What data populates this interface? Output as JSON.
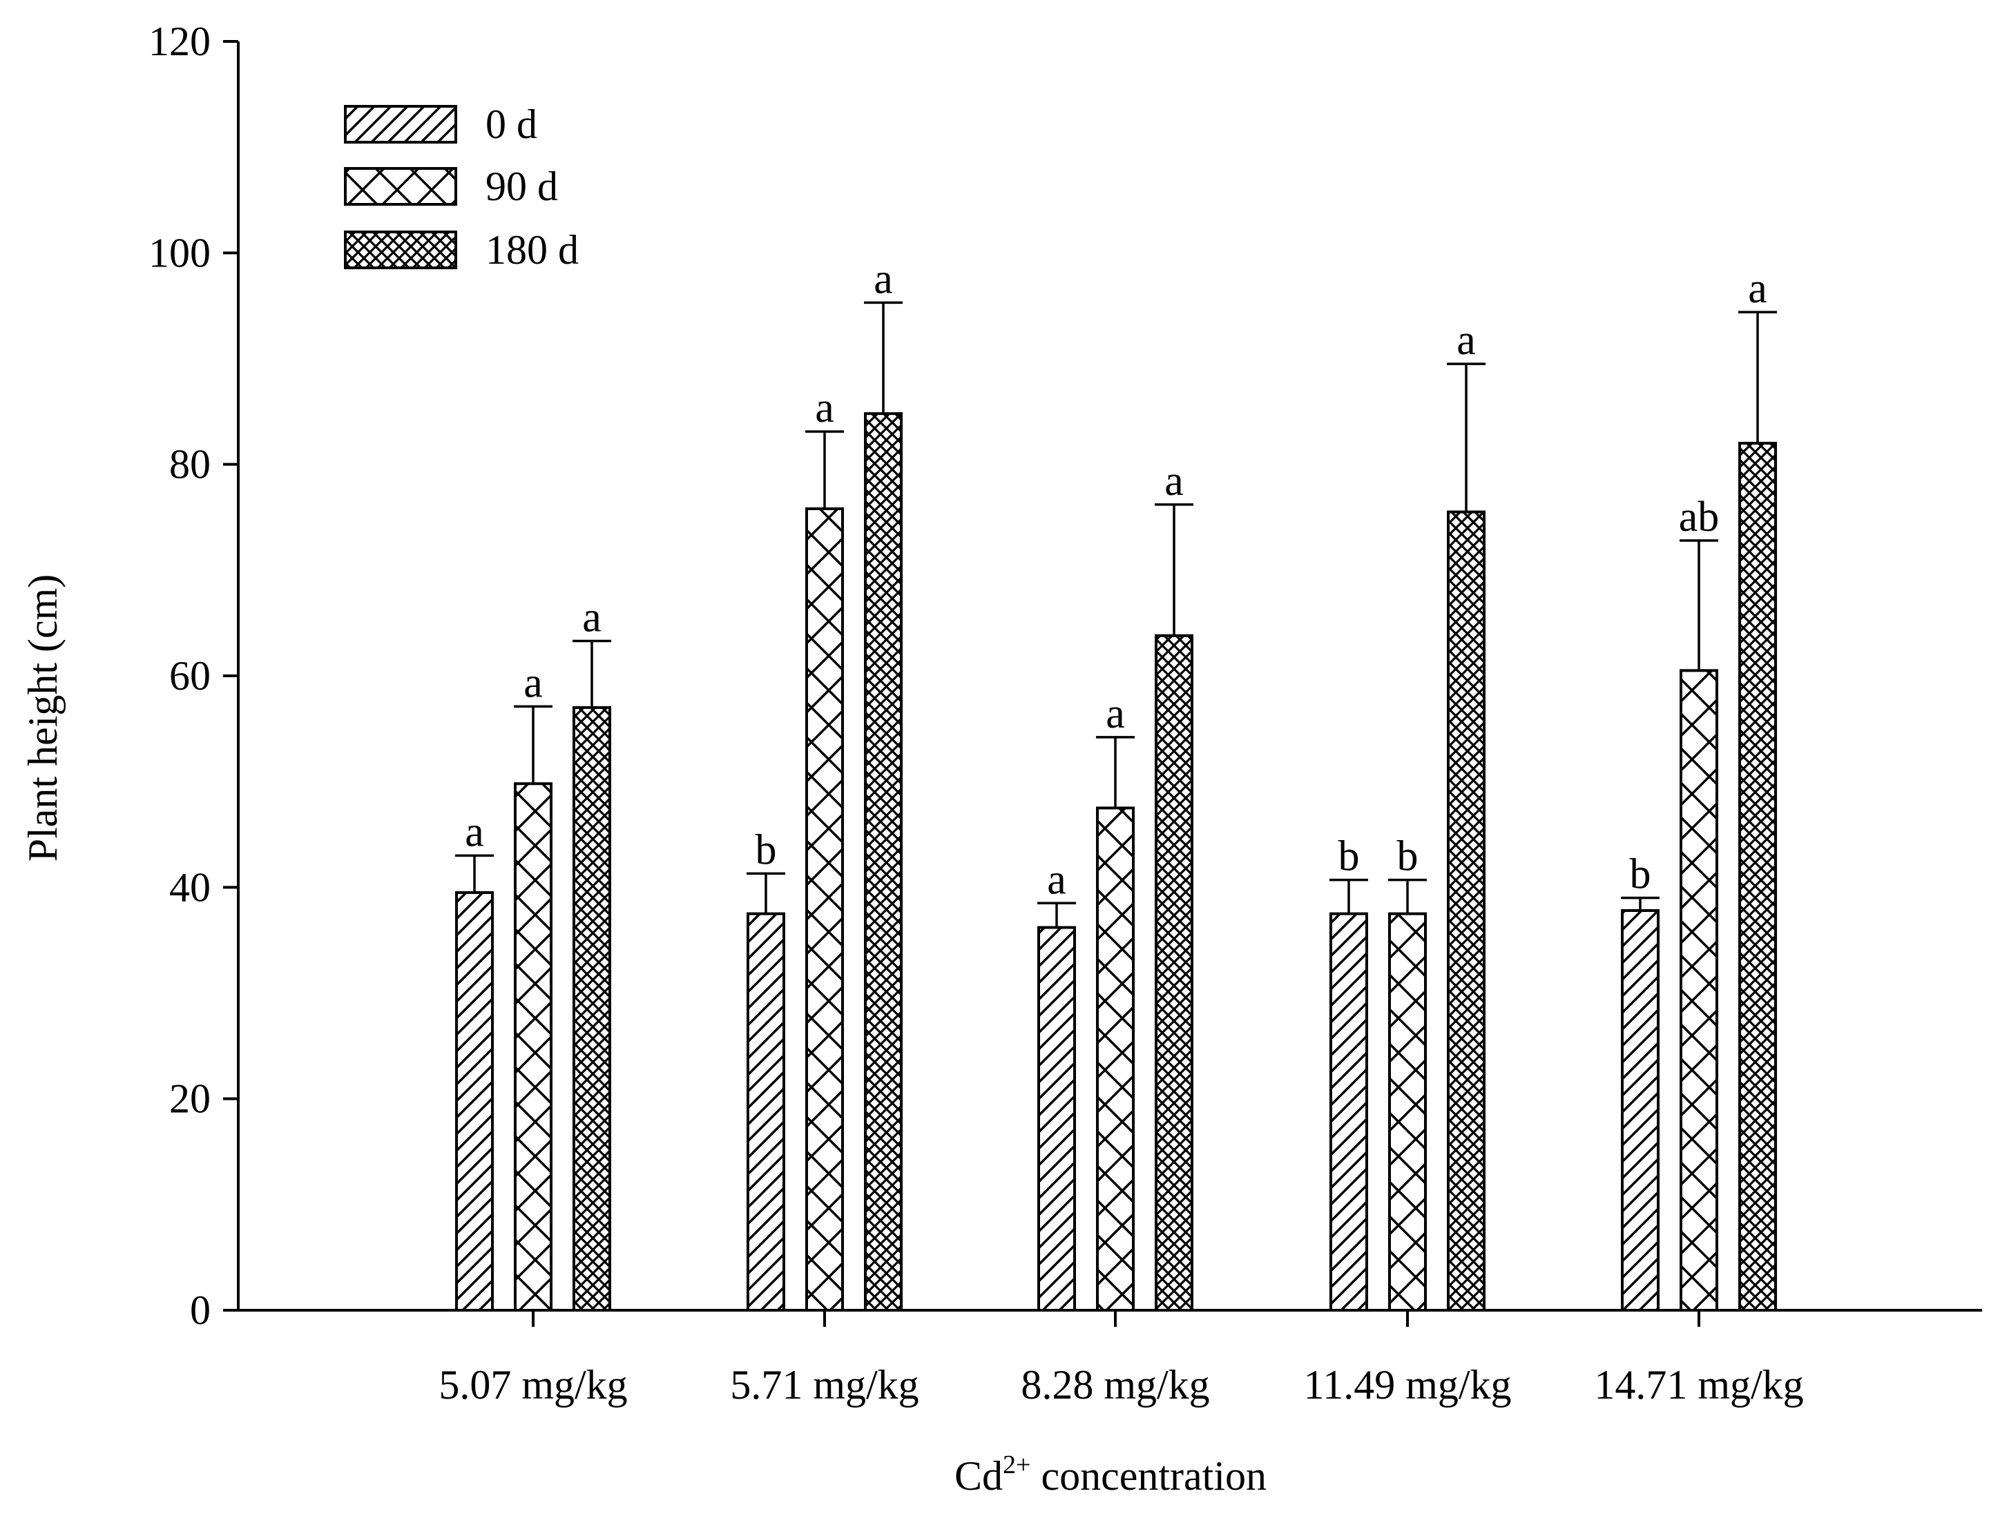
{
  "chart_data": {
    "type": "bar",
    "title": "",
    "xlabel": "Cd",
    "xlabel_superscript": "2+",
    "xlabel_suffix": " concentration",
    "ylabel": "Plant height (cm)",
    "ylim": [
      0,
      120
    ],
    "yticks": [
      0,
      20,
      40,
      60,
      80,
      100,
      120
    ],
    "grid": false,
    "legend_position": "top-left",
    "categories": [
      "5.07 mg/kg",
      "5.71 mg/kg",
      "8.28 mg/kg",
      "11.49 mg/kg",
      "14.71 mg/kg"
    ],
    "series": [
      {
        "name": "0 d",
        "pattern": "diagonal-hatch",
        "values": [
          39.5,
          37.5,
          36.2,
          37.5,
          37.8
        ],
        "error": [
          3.5,
          3.8,
          2.3,
          3.2,
          1.2
        ],
        "significance": [
          "a",
          "b",
          "a",
          "b",
          "b"
        ]
      },
      {
        "name": "90 d",
        "pattern": "cross-hatch",
        "values": [
          49.8,
          75.8,
          47.5,
          37.5,
          60.5
        ],
        "error": [
          7.3,
          7.3,
          6.7,
          3.2,
          12.3
        ],
        "significance": [
          "a",
          "a",
          "a",
          "b",
          "ab"
        ]
      },
      {
        "name": "180 d",
        "pattern": "dense-cross-hatch",
        "values": [
          57.0,
          84.8,
          63.8,
          75.5,
          82.0
        ],
        "error": [
          6.3,
          10.5,
          12.4,
          14.0,
          12.4
        ],
        "significance": [
          "a",
          "a",
          "a",
          "a",
          "a"
        ]
      }
    ]
  }
}
